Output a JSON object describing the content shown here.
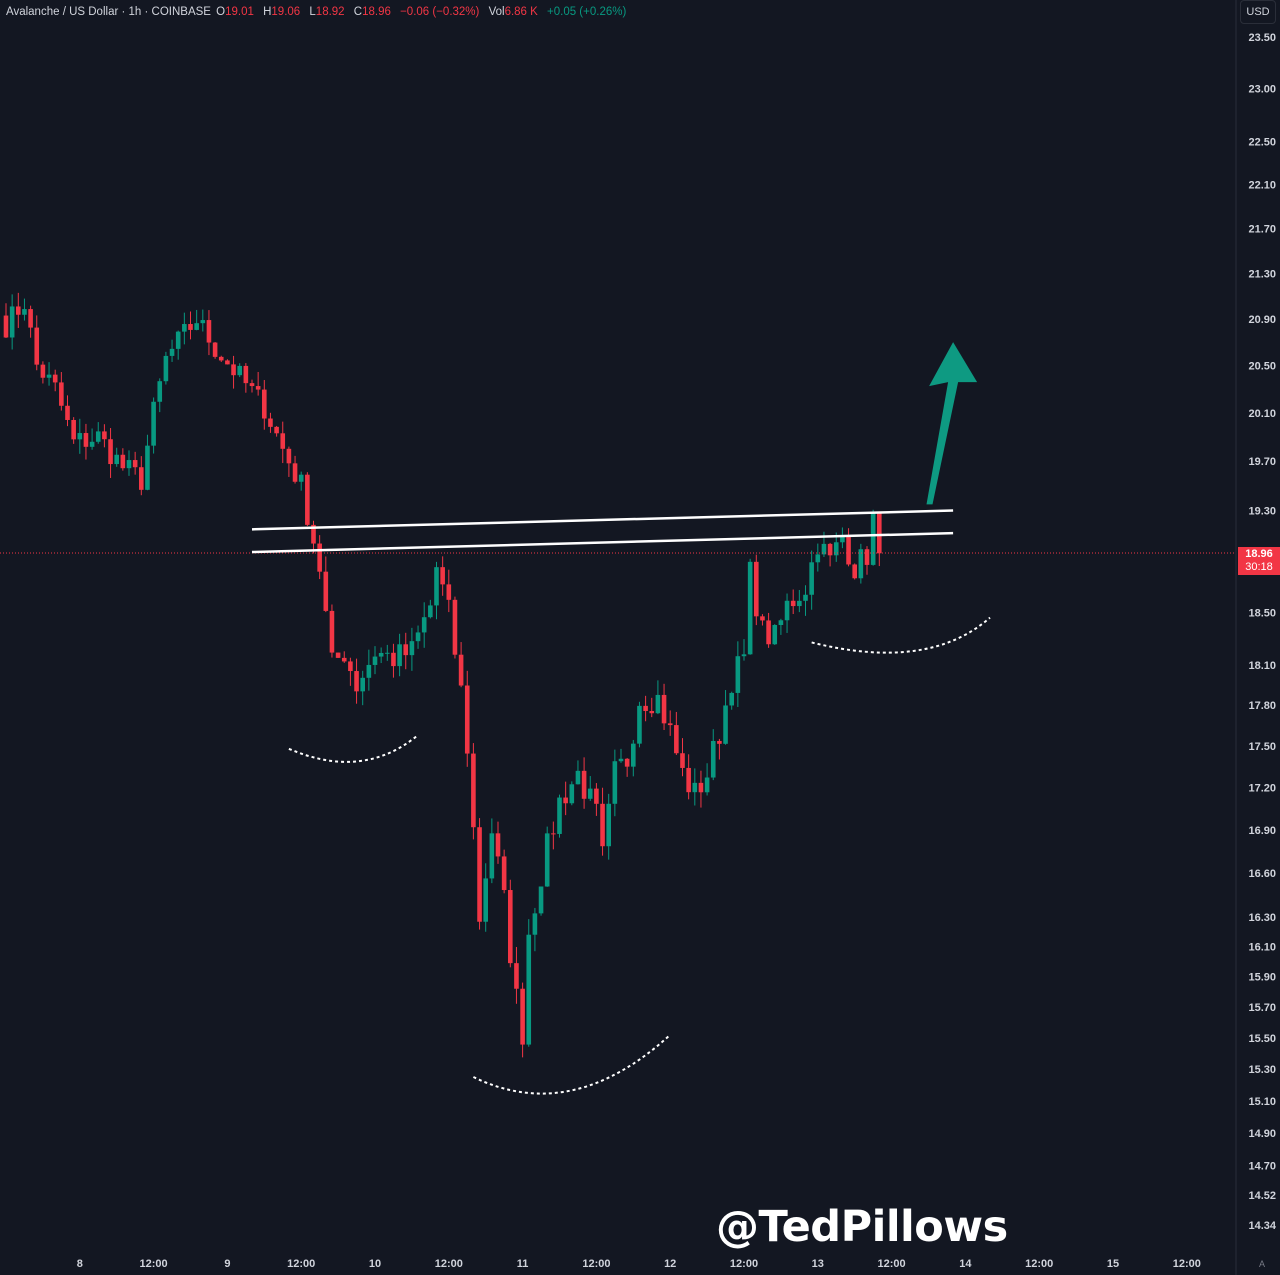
{
  "header": {
    "symbol": "Avalanche / US Dollar · 1h · COINBASE",
    "open_label": "O",
    "open": "19.01",
    "high_label": "H",
    "high": "19.06",
    "low_label": "L",
    "low": "18.92",
    "close_label": "C",
    "close": "18.96",
    "change": "−0.06 (−0.32%)",
    "volume_label": "Vol",
    "volume": "6.86 K",
    "volume_change": "+0.05 (+0.26%)"
  },
  "currency_button": "USD",
  "last_price": {
    "value": "18.96",
    "countdown": "30:18"
  },
  "watermark": "@TedPillows",
  "auto_label": "A",
  "colors": {
    "background": "#131722",
    "up": "#089981",
    "down": "#f23645",
    "arrow": "#0e9a82",
    "text": "#d1d4dc"
  },
  "chart_data": {
    "type": "candlestick",
    "title": "Avalanche / US Dollar · 1h · COINBASE",
    "log_scale": true,
    "grid": false,
    "y_ticks": [
      "23.50",
      "23.00",
      "22.50",
      "22.10",
      "21.70",
      "21.30",
      "20.90",
      "20.50",
      "20.10",
      "19.70",
      "19.30",
      "18.50",
      "18.10",
      "17.80",
      "17.50",
      "17.20",
      "16.90",
      "16.60",
      "16.30",
      "16.10",
      "15.90",
      "15.70",
      "15.50",
      "15.30",
      "15.10",
      "14.90",
      "14.70",
      "14.52",
      "14.34"
    ],
    "ylim": [
      14.1,
      23.7
    ],
    "x_ticks": [
      "8",
      "12:00",
      "9",
      "12:00",
      "10",
      "12:00",
      "11",
      "12:00",
      "12",
      "12:00",
      "13",
      "12:00",
      "14",
      "12:00",
      "15",
      "12:00"
    ],
    "x_tick_index": [
      12,
      24,
      36,
      48,
      60,
      72,
      84,
      96,
      108,
      120,
      132,
      144,
      156,
      168,
      180,
      192
    ],
    "close_path": [
      [
        0,
        20.85
      ],
      [
        3,
        21.05
      ],
      [
        5,
        20.5
      ],
      [
        8,
        20.3
      ],
      [
        11,
        19.85
      ],
      [
        15,
        19.9
      ],
      [
        19,
        19.65
      ],
      [
        22,
        19.55
      ],
      [
        24,
        20.1
      ],
      [
        26,
        20.55
      ],
      [
        28,
        20.7
      ],
      [
        31,
        20.9
      ],
      [
        34,
        20.65
      ],
      [
        38,
        20.4
      ],
      [
        42,
        20.15
      ],
      [
        45,
        19.8
      ],
      [
        48,
        19.5
      ],
      [
        51,
        18.85
      ],
      [
        53,
        18.1
      ],
      [
        55,
        18.2
      ],
      [
        57,
        17.95
      ],
      [
        60,
        18.2
      ],
      [
        63,
        18.15
      ],
      [
        66,
        18.2
      ],
      [
        69,
        18.55
      ],
      [
        70,
        18.85
      ],
      [
        72,
        18.5
      ],
      [
        74,
        17.9
      ],
      [
        75,
        17.5
      ],
      [
        77,
        16.3
      ],
      [
        79,
        16.9
      ],
      [
        81,
        16.4
      ],
      [
        83,
        15.75
      ],
      [
        84,
        15.55
      ],
      [
        85,
        16.2
      ],
      [
        87,
        16.6
      ],
      [
        90,
        17.1
      ],
      [
        93,
        17.3
      ],
      [
        96,
        17.0
      ],
      [
        97,
        16.7
      ],
      [
        99,
        17.3
      ],
      [
        101,
        17.4
      ],
      [
        103,
        17.85
      ],
      [
        106,
        17.85
      ],
      [
        108,
        17.6
      ],
      [
        110,
        17.3
      ],
      [
        112,
        17.15
      ],
      [
        114,
        17.3
      ],
      [
        116,
        17.6
      ],
      [
        118,
        18.0
      ],
      [
        120,
        18.15
      ],
      [
        121,
        18.8
      ],
      [
        123,
        18.35
      ],
      [
        125,
        18.3
      ],
      [
        127,
        18.55
      ],
      [
        130,
        18.7
      ],
      [
        132,
        19.05
      ],
      [
        134,
        18.9
      ],
      [
        136,
        19.1
      ],
      [
        138,
        18.85
      ],
      [
        140,
        18.95
      ],
      [
        141,
        19.25
      ],
      [
        142,
        18.96
      ]
    ],
    "candles_per_hour": 1,
    "annotations": {
      "neckline_upper": {
        "from": [
          40,
          19.15
        ],
        "to": [
          154,
          19.3
        ]
      },
      "neckline_lower": {
        "from": [
          40,
          18.97
        ],
        "to": [
          154,
          19.12
        ]
      },
      "arrow": {
        "from": [
          150,
          19.35
        ],
        "to": [
          154,
          20.7
        ]
      },
      "arcs": [
        "left shoulder",
        "head",
        "right shoulder"
      ]
    }
  }
}
